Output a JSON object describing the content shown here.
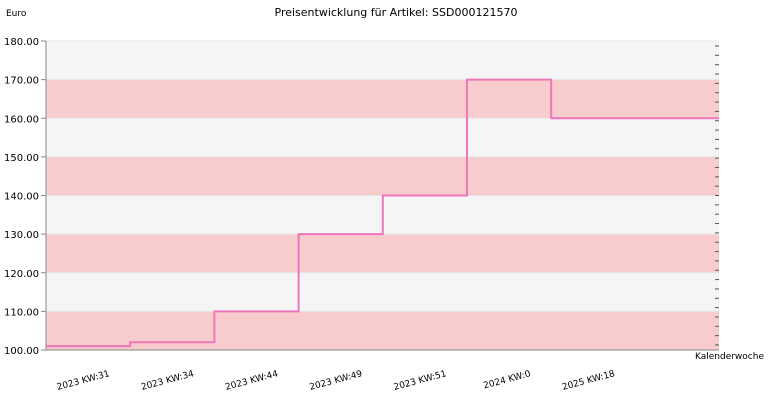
{
  "chart_data": {
    "type": "line",
    "step": true,
    "title": "Preisentwicklung für Artikel: SSD000121570",
    "ylabel": "Euro",
    "xlabel": "Kalenderwoche",
    "ylim": [
      100,
      180
    ],
    "yticks": [
      "100.00",
      "110.00",
      "120.00",
      "130.00",
      "140.00",
      "150.00",
      "160.00",
      "170.00",
      "180.00"
    ],
    "categories": [
      "2023 KW:31",
      "2023 KW:34",
      "2023 KW:44",
      "2023 KW:49",
      "2023 KW:51",
      "2024 KW:0",
      "2025 KW:18"
    ],
    "values": [
      101,
      102,
      110,
      130,
      140,
      170,
      160
    ],
    "grid": true,
    "colors": {
      "line": "#ee77bb",
      "band_dark": "#f8cccc",
      "band_light": "#f5f5f5",
      "axis": "#888888"
    }
  }
}
